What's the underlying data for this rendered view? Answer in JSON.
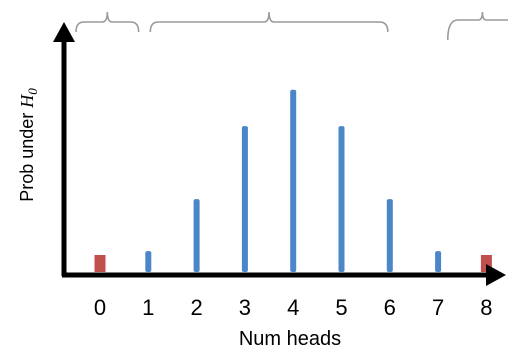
{
  "chart_data": {
    "type": "bar",
    "xlabel": "Num heads",
    "ylabel_prefix": "Prob under ",
    "ylabel_symbol": "H",
    "ylabel_subscript": "0",
    "x": [
      0,
      1,
      2,
      3,
      4,
      5,
      6,
      7,
      8
    ],
    "tick_labels": [
      "0",
      "1",
      "2",
      "3",
      "4",
      "5",
      "6",
      "7",
      "8"
    ],
    "values": [
      0.0039,
      0.03125,
      0.1094,
      0.2188,
      0.2734,
      0.2188,
      0.1094,
      0.03125,
      0.0039
    ],
    "ylim": [
      0,
      0.33
    ],
    "highlighted_x": [
      0,
      8
    ],
    "colors": {
      "bar": "#4a86c8",
      "highlight": "#c0504d",
      "axis": "#000000",
      "bracket": "#9a9a9a"
    },
    "brackets": [
      {
        "from": 0,
        "to": 0.8
      },
      {
        "from": 1,
        "to": 6
      },
      {
        "from": 7.2,
        "to": 8
      }
    ]
  }
}
